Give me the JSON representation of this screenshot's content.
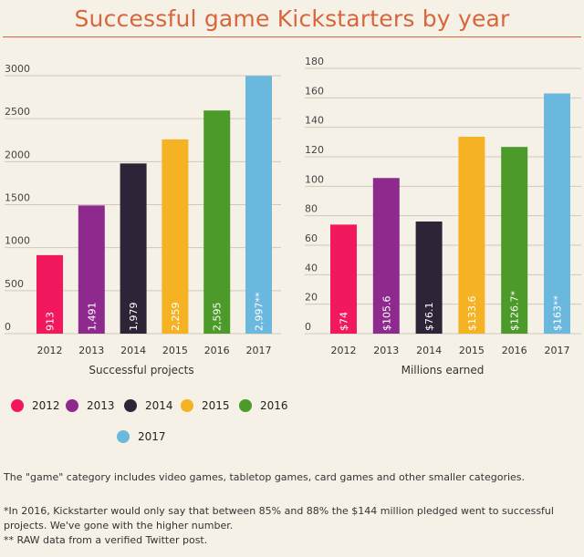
{
  "title": "Successful game Kickstarters by year",
  "colors": {
    "title": "#d8663a",
    "2012": "#f2185d",
    "2013": "#8e2a8e",
    "2014": "#2d2537",
    "2015": "#f5b223",
    "2016": "#4c9a2a",
    "2017": "#6ab8de",
    "grid": "#cfc8bc"
  },
  "legend": [
    {
      "label": "2012",
      "color": "#f2185d"
    },
    {
      "label": "2013",
      "color": "#8e2a8e"
    },
    {
      "label": "2014",
      "color": "#2d2537"
    },
    {
      "label": "2015",
      "color": "#f5b223"
    },
    {
      "label": "2016",
      "color": "#4c9a2a"
    },
    {
      "label": "2017",
      "color": "#6ab8de"
    }
  ],
  "chart_data": [
    {
      "type": "bar",
      "title": "",
      "xlabel": "Successful projects",
      "ylabel": "",
      "categories": [
        "2012",
        "2013",
        "2014",
        "2015",
        "2016",
        "2017"
      ],
      "values": [
        913,
        1491,
        1979,
        2259,
        2595,
        2997
      ],
      "data_labels": [
        "913",
        "1,491",
        "1,979",
        "2,259",
        "2,595",
        "2,997**"
      ],
      "ylim": [
        0,
        3000
      ],
      "yticks": [
        0,
        500,
        1000,
        1500,
        2000,
        2500,
        3000
      ],
      "grid": true
    },
    {
      "type": "bar",
      "title": "",
      "xlabel": "Millions earned",
      "ylabel": "",
      "categories": [
        "2012",
        "2013",
        "2014",
        "2015",
        "2016",
        "2017"
      ],
      "values": [
        74,
        105.6,
        76.1,
        133.6,
        126.7,
        163
      ],
      "data_labels": [
        "$74",
        "$105.6",
        "$76.1",
        "$133.6",
        "$126.7*",
        "$163**"
      ],
      "ylim": [
        0,
        180
      ],
      "yticks": [
        0,
        20,
        40,
        60,
        80,
        100,
        120,
        140,
        160,
        180
      ],
      "grid": true
    }
  ],
  "notes": {
    "category": "The \"game\" category includes video games, tabletop games, card games and other smaller categories.",
    "footnote_2016": "*In 2016, Kickstarter would only say that between 85% and 88% the $144 million pledged went to successful projects. We've gone with the higher number.",
    "footnote_2017": "** RAW data from a verified Twitter post."
  }
}
